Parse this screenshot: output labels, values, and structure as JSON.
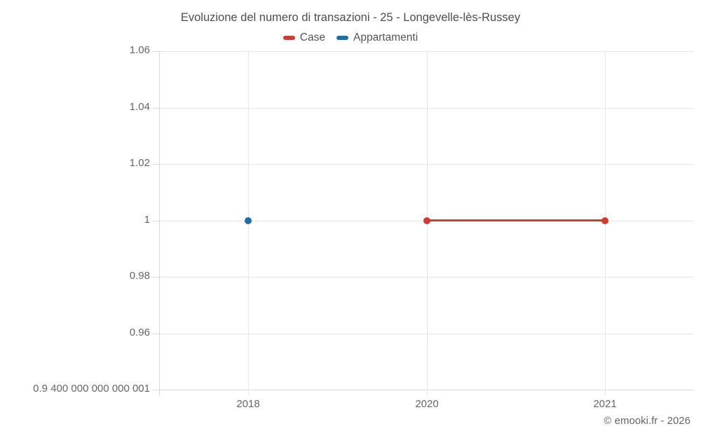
{
  "header": {
    "title": "Evoluzione del numero di transazioni - 25 - Longevelle-lès-Russey"
  },
  "footer": {
    "credit": "© emooki.fr - 2026"
  },
  "colors": {
    "background": "#ffffff",
    "grid": "#e7e7e7",
    "axis": "#d9d9d9",
    "tick": "#d9d9d9",
    "axis_label": "#666666",
    "title_text": "#4d4d4d",
    "legend_text": "#555555",
    "case_red": "#d43a32",
    "appartamenti_blue": "#1c6fa8"
  },
  "chart_data": {
    "type": "line",
    "title": "Evoluzione del numero di transazioni - 25 - Longevelle-lès-Russey",
    "xlabel": "",
    "ylabel": "",
    "categories": [
      "2018",
      "2020",
      "2021"
    ],
    "series": [
      {
        "name": "Case",
        "color": "#d43a32",
        "values": [
          null,
          1,
          1
        ]
      },
      {
        "name": "Appartamenti",
        "color": "#1c6fa8",
        "values": [
          1,
          null,
          null
        ]
      }
    ],
    "y_tick_labels": [
      "1.06",
      "1.04",
      "1.02",
      "1",
      "0.98",
      "0.96",
      "0.9 400 000 000 000 001"
    ],
    "y_tick_values": [
      1.06,
      1.04,
      1.02,
      1.0,
      0.98,
      0.96,
      0.94
    ],
    "ylim": [
      0.9400000000000001,
      1.06
    ],
    "x_tick_labels": [
      "2018",
      "2020",
      "2021"
    ],
    "grid": true,
    "legend_position": "top",
    "marker_radius": 5,
    "line_width": 3
  }
}
